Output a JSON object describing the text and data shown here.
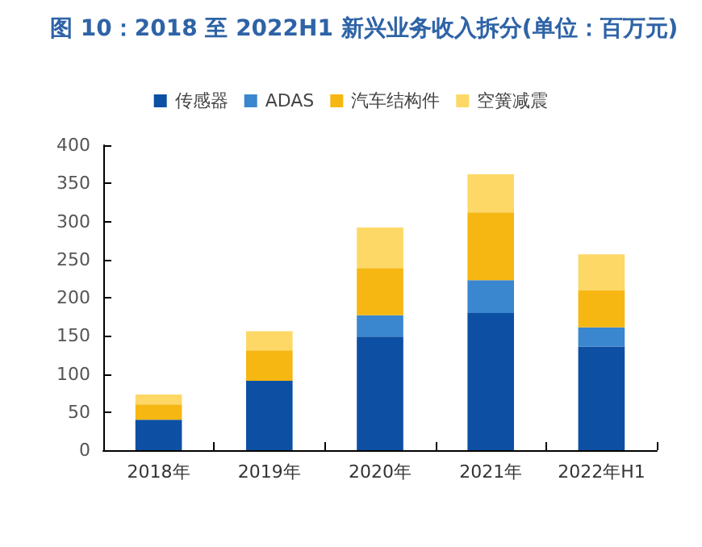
{
  "chart_data": {
    "type": "bar",
    "title": "图 10：2018 至 2022H1 新兴业务收入拆分(单位：百万元)",
    "stacked": true,
    "categories": [
      "2018年",
      "2019年",
      "2020年",
      "2021年",
      "2022年H1"
    ],
    "series": [
      {
        "name": "传感器",
        "color": "#0d4fa3",
        "values": [
          40,
          91,
          149,
          180,
          136
        ]
      },
      {
        "name": "ADAS",
        "color": "#3a86cf",
        "values": [
          0,
          0,
          28,
          43,
          25
        ]
      },
      {
        "name": "汽车结构件",
        "color": "#f7b712",
        "values": [
          20,
          40,
          62,
          89,
          49
        ]
      },
      {
        "name": "空簧减震",
        "color": "#fdd866",
        "values": [
          13,
          25,
          53,
          50,
          47
        ]
      }
    ],
    "ylim": [
      0,
      400
    ],
    "yticks": [
      0,
      50,
      100,
      150,
      200,
      250,
      300,
      350,
      400
    ],
    "grid": false,
    "legend": "top"
  }
}
